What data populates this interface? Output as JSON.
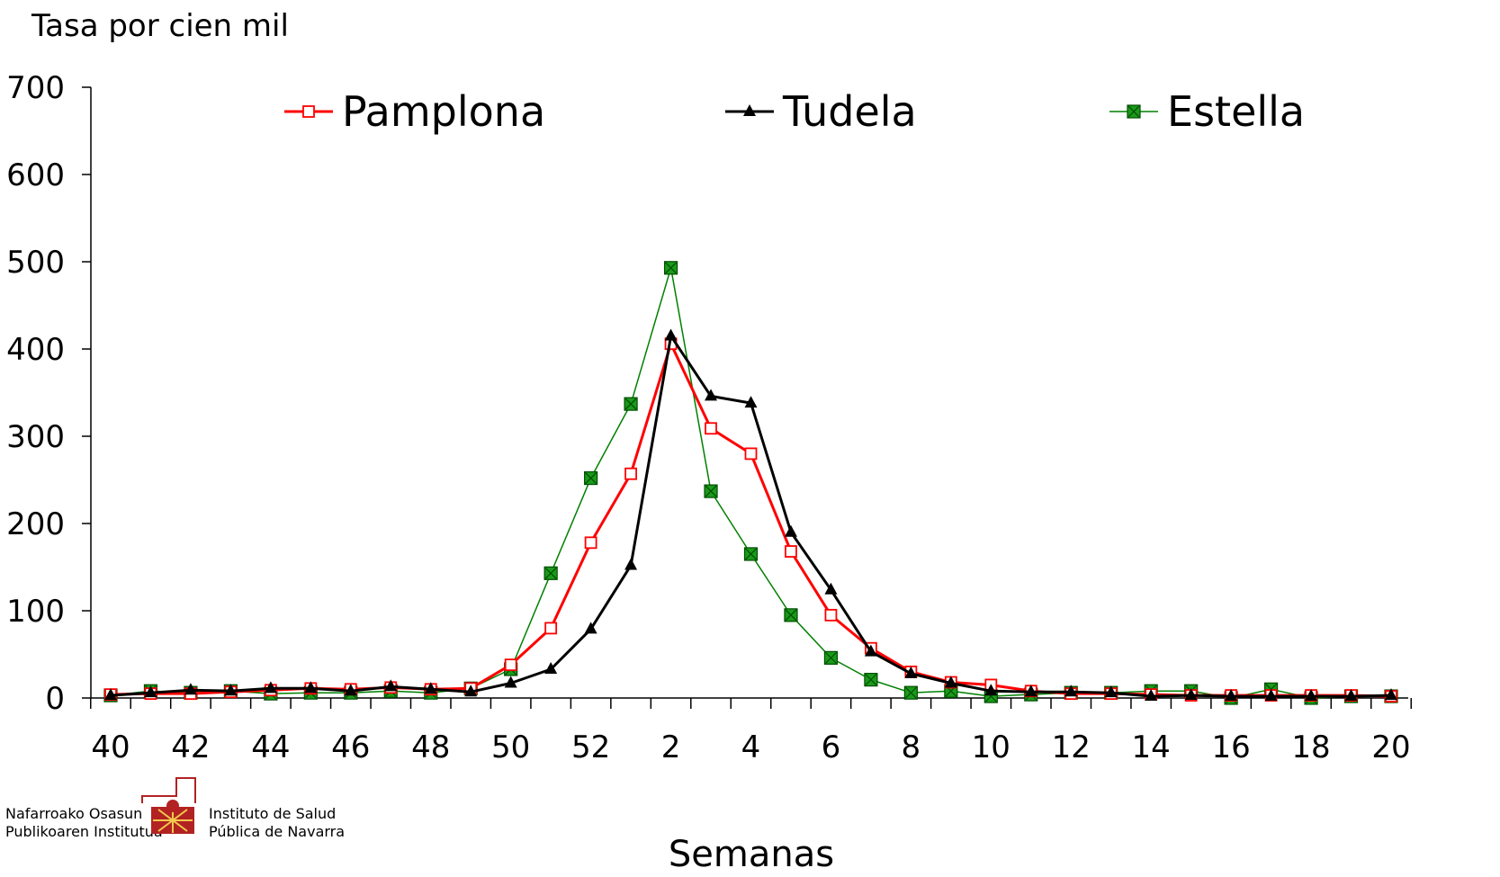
{
  "chart_data": {
    "type": "line",
    "ylabel": "Tasa por cien mil",
    "xlabel": "Semanas",
    "ylim": [
      0,
      700
    ],
    "y_ticks": [
      0,
      100,
      200,
      300,
      400,
      500,
      600,
      700
    ],
    "x": [
      "40",
      "41",
      "42",
      "43",
      "44",
      "45",
      "46",
      "47",
      "48",
      "49",
      "50",
      "51",
      "52",
      "1",
      "2",
      "3",
      "4",
      "5",
      "6",
      "7",
      "8",
      "9",
      "10",
      "11",
      "12",
      "13",
      "14",
      "15",
      "16",
      "17",
      "18",
      "19",
      "20"
    ],
    "x_tick_labels": [
      "40",
      "42",
      "44",
      "46",
      "48",
      "50",
      "52",
      "2",
      "4",
      "6",
      "8",
      "10",
      "12",
      "14",
      "16",
      "18",
      "20"
    ],
    "grid": false,
    "legend_position": "top",
    "series": [
      {
        "name": "Pamplona",
        "color": "#ff0000",
        "marker": "open-square",
        "values": [
          4,
          5,
          5,
          7,
          9,
          11,
          10,
          12,
          10,
          11,
          38,
          80,
          178,
          257,
          406,
          309,
          280,
          168,
          95,
          57,
          30,
          18,
          15,
          8,
          5,
          5,
          4,
          3,
          3,
          3,
          3,
          3,
          2
        ]
      },
      {
        "name": "Tudela",
        "color": "#000000",
        "marker": "filled-triangle",
        "values": [
          3,
          6,
          9,
          8,
          11,
          11,
          8,
          13,
          10,
          7,
          17,
          33,
          79,
          152,
          415,
          346,
          338,
          190,
          124,
          53,
          28,
          17,
          8,
          7,
          7,
          6,
          2,
          3,
          2,
          2,
          2,
          2,
          3
        ]
      },
      {
        "name": "Estella",
        "color": "#008000",
        "marker": "filled-square-x",
        "values": [
          3,
          8,
          6,
          8,
          5,
          6,
          6,
          8,
          6,
          11,
          33,
          143,
          252,
          337,
          493,
          237,
          165,
          95,
          46,
          21,
          6,
          8,
          2,
          4,
          6,
          6,
          8,
          8,
          0,
          10,
          0,
          2,
          2
        ]
      }
    ]
  },
  "logo": {
    "left_text_line1": "Nafarroako Osasun",
    "left_text_line2": "Publikoaren Institutua",
    "right_text_line1": "Instituto de Salud",
    "right_text_line2": "Pública de Navarra",
    "color": "#b22222"
  }
}
